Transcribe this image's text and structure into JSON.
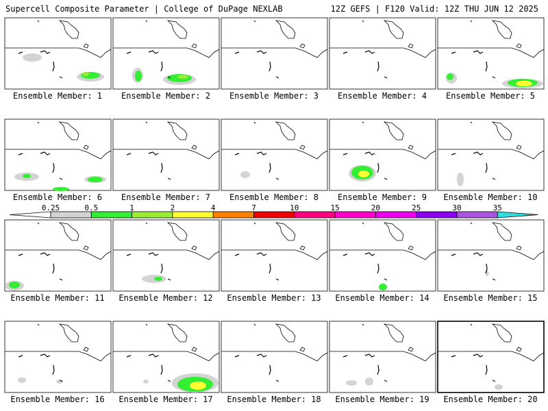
{
  "header": {
    "left": "Supercell Composite Parameter | College of DuPage NEXLAB",
    "right": "12Z GEFS | F120 Valid: 12Z THU JUN 12 2025"
  },
  "colorbar": {
    "labels": [
      "0.25",
      "0.5",
      "1",
      "2",
      "4",
      "7",
      "10",
      "15",
      "20",
      "25",
      "30",
      "35"
    ],
    "colors": [
      "#d3d3d3",
      "#33ee33",
      "#99ee33",
      "#ffff33",
      "#ff8000",
      "#ee0000",
      "#ff0080",
      "#ff00cc",
      "#ee00ee",
      "#8800ee",
      "#aa55dd",
      "#33dddd"
    ]
  },
  "panels": [
    {
      "label": "Ensemble Member: 1"
    },
    {
      "label": "Ensemble Member: 2"
    },
    {
      "label": "Ensemble Member: 3"
    },
    {
      "label": "Ensemble Member: 4"
    },
    {
      "label": "Ensemble Member: 5"
    },
    {
      "label": "Ensemble Member: 6"
    },
    {
      "label": "Ensemble Member: 7"
    },
    {
      "label": "Ensemble Member: 8"
    },
    {
      "label": "Ensemble Member: 9"
    },
    {
      "label": "Ensemble Member: 10"
    },
    {
      "label": "Ensemble Member: 11"
    },
    {
      "label": "Ensemble Member: 12"
    },
    {
      "label": "Ensemble Member: 13"
    },
    {
      "label": "Ensemble Member: 14"
    },
    {
      "label": "Ensemble Member: 15"
    },
    {
      "label": "Ensemble Member: 16"
    },
    {
      "label": "Ensemble Member: 17"
    },
    {
      "label": "Ensemble Member: 18"
    },
    {
      "label": "Ensemble Member: 19"
    },
    {
      "label": "Ensemble Member: 20"
    }
  ]
}
